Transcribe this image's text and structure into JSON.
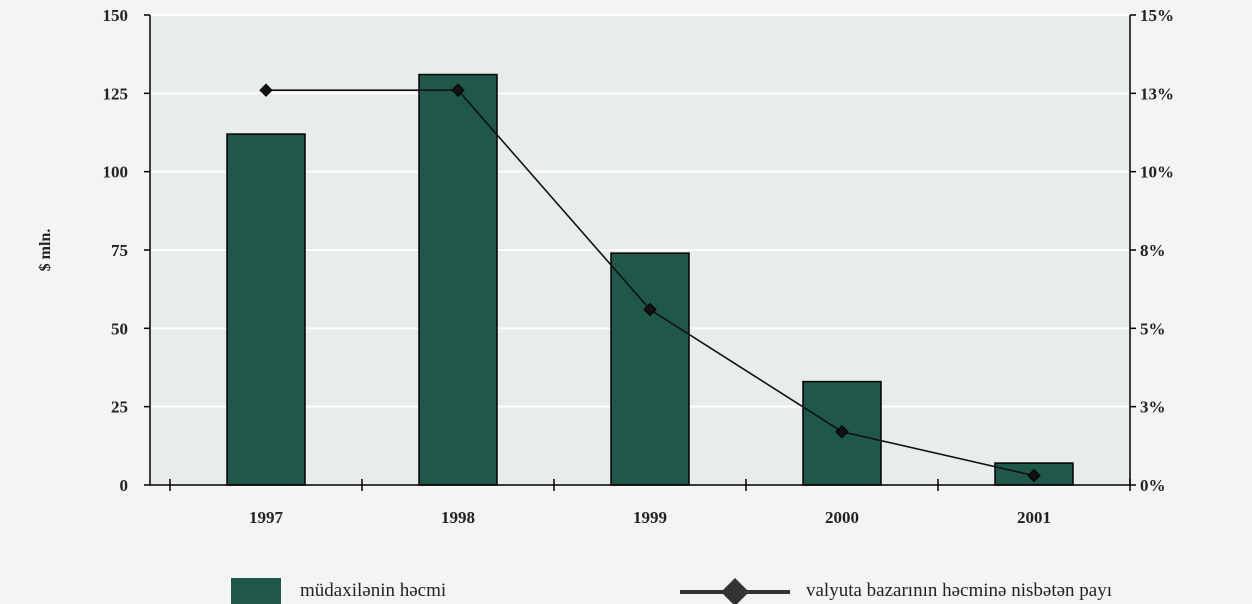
{
  "chart_data": {
    "type": "bar",
    "categories": [
      "1997",
      "1998",
      "1999",
      "2000",
      "2001"
    ],
    "series": [
      {
        "name": "müdaxilənin həcmi",
        "kind": "bar",
        "axis": "left",
        "values": [
          112,
          131,
          74,
          33,
          7
        ]
      },
      {
        "name": "valyuta bazarının həcminə nisbətən payı",
        "kind": "line",
        "axis": "right",
        "values": [
          12.6,
          12.6,
          5.6,
          1.7,
          0.3
        ]
      }
    ],
    "ylabel": "$ mln.",
    "xlabel": "",
    "ylim": [
      0,
      150
    ],
    "y2lim": [
      0,
      15
    ],
    "yticks": [
      "0",
      "25",
      "50",
      "75",
      "100",
      "125",
      "150"
    ],
    "y2ticks": [
      "0%",
      "3%",
      "5%",
      "8%",
      "10%",
      "13%",
      "15%"
    ],
    "grid": "horizontal",
    "legend": "bottom",
    "colors": {
      "bar": "#1f574a",
      "line": "#111111",
      "plot_bg": "#e8ecea",
      "page_bg": "#f3f5f5"
    }
  }
}
